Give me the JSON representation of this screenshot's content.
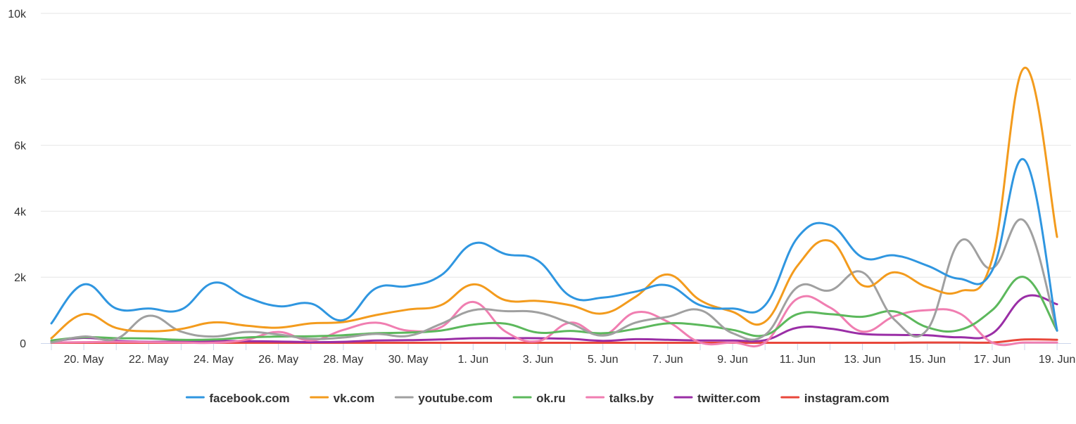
{
  "chart_data": {
    "type": "line",
    "title": "",
    "xlabel": "",
    "ylabel": "",
    "ylim": [
      0,
      10000
    ],
    "y_ticks": [
      0,
      2000,
      4000,
      6000,
      8000,
      10000
    ],
    "y_tick_labels": [
      "0",
      "2k",
      "4k",
      "6k",
      "8k",
      "10k"
    ],
    "x": [
      "19. May",
      "20. May",
      "21. May",
      "22. May",
      "23. May",
      "24. May",
      "25. May",
      "26. May",
      "27. May",
      "28. May",
      "29. May",
      "30. May",
      "31. May",
      "1. Jun",
      "2. Jun",
      "3. Jun",
      "4. Jun",
      "5. Jun",
      "6. Jun",
      "7. Jun",
      "8. Jun",
      "9. Jun",
      "10. Jun",
      "11. Jun",
      "12. Jun",
      "13. Jun",
      "14. Jun",
      "15. Jun",
      "16. Jun",
      "17. Jun",
      "18. Jun",
      "19. Jun"
    ],
    "x_tick_labels": [
      "20. May",
      "22. May",
      "24. May",
      "26. May",
      "28. May",
      "30. May",
      "1. Jun",
      "3. Jun",
      "5. Jun",
      "7. Jun",
      "9. Jun",
      "11. Jun",
      "13. Jun",
      "15. Jun",
      "17. Jun",
      "19. Jun"
    ],
    "grid": "horizontal",
    "legend_position": "bottom",
    "series": [
      {
        "name": "facebook.com",
        "color": "#2f96e0",
        "values": [
          600,
          1780,
          1050,
          1050,
          1020,
          1830,
          1400,
          1120,
          1200,
          700,
          1660,
          1730,
          2050,
          3020,
          2700,
          2500,
          1420,
          1380,
          1560,
          1750,
          1150,
          1050,
          1150,
          3200,
          3580,
          2600,
          2660,
          2350,
          1950,
          2200,
          5550,
          380
        ]
      },
      {
        "name": "vk.com",
        "color": "#f39b1d",
        "values": [
          150,
          880,
          460,
          360,
          430,
          630,
          530,
          470,
          600,
          640,
          850,
          1020,
          1150,
          1780,
          1300,
          1280,
          1150,
          900,
          1400,
          2080,
          1300,
          950,
          650,
          2350,
          3100,
          1750,
          2150,
          1700,
          1570,
          2550,
          8350,
          3220
        ]
      },
      {
        "name": "youtube.com",
        "color": "#a0a0a0",
        "values": [
          20,
          200,
          130,
          830,
          350,
          200,
          340,
          260,
          130,
          170,
          280,
          220,
          580,
          1000,
          970,
          930,
          600,
          230,
          620,
          800,
          1000,
          300,
          250,
          1700,
          1600,
          2150,
          700,
          410,
          3080,
          2270,
          3700,
          380
        ]
      },
      {
        "name": "ok.ru",
        "color": "#5cb85c",
        "values": [
          80,
          180,
          150,
          140,
          100,
          110,
          170,
          200,
          210,
          240,
          300,
          320,
          380,
          560,
          590,
          320,
          370,
          300,
          430,
          600,
          550,
          400,
          240,
          880,
          880,
          800,
          960,
          480,
          400,
          1000,
          2000,
          380
        ]
      },
      {
        "name": "talks.by",
        "color": "#f07eb1",
        "values": [
          20,
          30,
          40,
          30,
          20,
          10,
          100,
          340,
          80,
          400,
          620,
          380,
          480,
          1250,
          350,
          60,
          620,
          240,
          930,
          650,
          20,
          20,
          20,
          1350,
          1080,
          350,
          820,
          1000,
          900,
          20,
          20,
          20
        ]
      },
      {
        "name": "twitter.com",
        "color": "#9a2ea6",
        "values": [
          40,
          160,
          70,
          40,
          50,
          70,
          60,
          50,
          30,
          40,
          80,
          90,
          110,
          150,
          150,
          150,
          130,
          70,
          120,
          100,
          80,
          80,
          90,
          470,
          440,
          280,
          250,
          240,
          180,
          290,
          1400,
          1180
        ]
      },
      {
        "name": "instagram.com",
        "color": "#e8473b",
        "values": [
          10,
          10,
          10,
          10,
          10,
          10,
          10,
          10,
          10,
          10,
          10,
          10,
          10,
          10,
          10,
          10,
          10,
          10,
          10,
          10,
          10,
          10,
          10,
          10,
          10,
          10,
          10,
          20,
          20,
          20,
          110,
          100
        ]
      }
    ]
  }
}
